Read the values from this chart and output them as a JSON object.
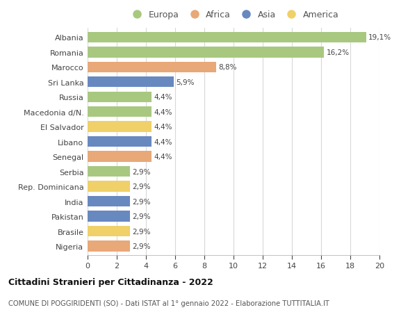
{
  "countries": [
    "Albania",
    "Romania",
    "Marocco",
    "Sri Lanka",
    "Russia",
    "Macedonia d/N.",
    "El Salvador",
    "Libano",
    "Senegal",
    "Serbia",
    "Rep. Dominicana",
    "India",
    "Pakistan",
    "Brasile",
    "Nigeria"
  ],
  "values": [
    19.1,
    16.2,
    8.8,
    5.9,
    4.4,
    4.4,
    4.4,
    4.4,
    4.4,
    2.9,
    2.9,
    2.9,
    2.9,
    2.9,
    2.9
  ],
  "labels": [
    "19,1%",
    "16,2%",
    "8,8%",
    "5,9%",
    "4,4%",
    "4,4%",
    "4,4%",
    "4,4%",
    "4,4%",
    "2,9%",
    "2,9%",
    "2,9%",
    "2,9%",
    "2,9%",
    "2,9%"
  ],
  "continents": [
    "Europa",
    "Europa",
    "Africa",
    "Asia",
    "Europa",
    "Europa",
    "America",
    "Asia",
    "Africa",
    "Europa",
    "America",
    "Asia",
    "Asia",
    "America",
    "Africa"
  ],
  "colors": {
    "Europa": "#a8c880",
    "Africa": "#e8a878",
    "Asia": "#6888c0",
    "America": "#f0d068"
  },
  "legend_order": [
    "Europa",
    "Africa",
    "Asia",
    "America"
  ],
  "title": "Cittadini Stranieri per Cittadinanza - 2022",
  "subtitle": "COMUNE DI POGGIRIDENTI (SO) - Dati ISTAT al 1° gennaio 2022 - Elaborazione TUTTITALIA.IT",
  "xlim": [
    0,
    20
  ],
  "xticks": [
    0,
    2,
    4,
    6,
    8,
    10,
    12,
    14,
    16,
    18,
    20
  ],
  "bg_color": "#ffffff",
  "grid_color": "#d8d8d8",
  "bar_height": 0.72
}
